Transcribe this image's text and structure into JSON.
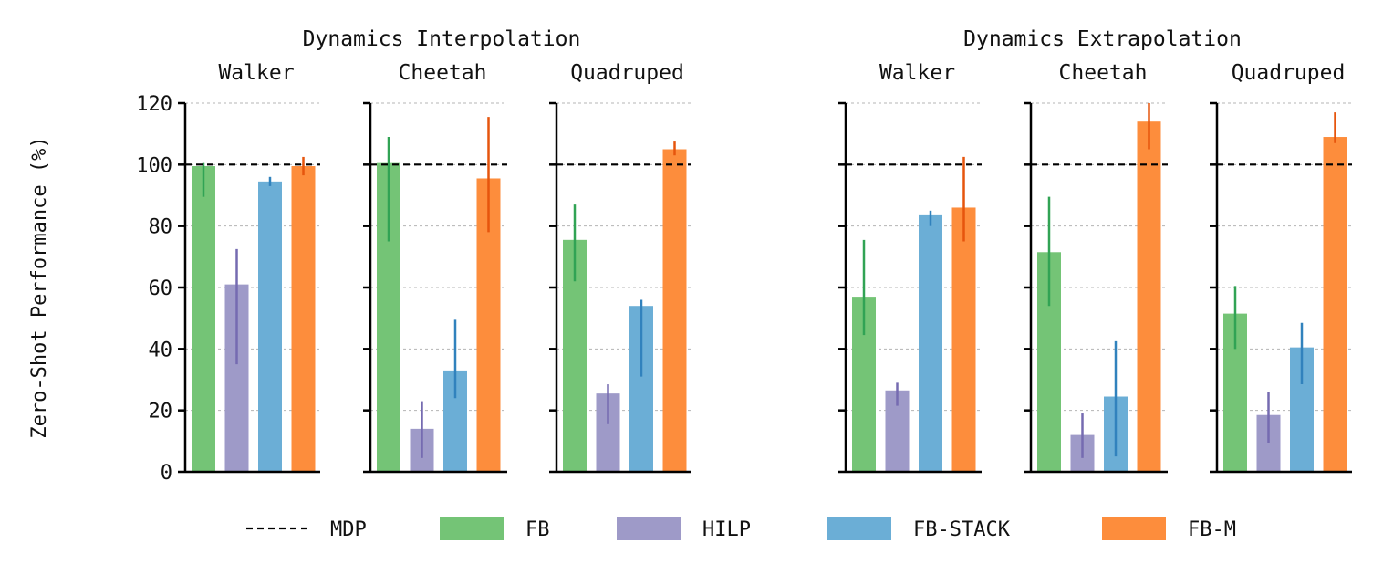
{
  "chart_data": {
    "type": "bar",
    "ylabel": "Zero-Shot Performance (%)",
    "ylim": [
      0,
      120
    ],
    "yticks": [
      0,
      20,
      40,
      60,
      80,
      100,
      120
    ],
    "grid": true,
    "reference_line": {
      "name": "MDP",
      "value": 100
    },
    "series_names": [
      "FB",
      "HILP",
      "FB-STACK",
      "FB-M"
    ],
    "colors": {
      "FB": "#74c476",
      "HILP": "#9e9ac8",
      "FB-STACK": "#6baed6",
      "FB-M": "#fd8d3c"
    },
    "error_colors": {
      "FB": "#31a354",
      "HILP": "#756bb1",
      "FB-STACK": "#3182bd",
      "FB-M": "#e6550d"
    },
    "groups": [
      {
        "title": "Dynamics Interpolation",
        "panels": [
          {
            "title": "Walker",
            "values": {
              "FB": 99.5,
              "HILP": 61,
              "FB-STACK": 94.5,
              "FB-M": 99.5
            },
            "errors": {
              "FB": [
                89.5,
                100.5
              ],
              "HILP": [
                35,
                72.5
              ],
              "FB-STACK": [
                93,
                96
              ],
              "FB-M": [
                96.5,
                102.5
              ]
            }
          },
          {
            "title": "Cheetah",
            "values": {
              "FB": 100.5,
              "HILP": 14,
              "FB-STACK": 33,
              "FB-M": 95.5
            },
            "errors": {
              "FB": [
                75,
                109
              ],
              "HILP": [
                4.5,
                23
              ],
              "FB-STACK": [
                24,
                49.5
              ],
              "FB-M": [
                78,
                115.5
              ]
            }
          },
          {
            "title": "Quadruped",
            "values": {
              "FB": 75.5,
              "HILP": 25.5,
              "FB-STACK": 54,
              "FB-M": 105
            },
            "errors": {
              "FB": [
                62,
                87
              ],
              "HILP": [
                15.5,
                28.5
              ],
              "FB-STACK": [
                31,
                56
              ],
              "FB-M": [
                103,
                107.5
              ]
            }
          }
        ]
      },
      {
        "title": "Dynamics Extrapolation",
        "panels": [
          {
            "title": "Walker",
            "values": {
              "FB": 57,
              "HILP": 26.5,
              "FB-STACK": 83.5,
              "FB-M": 86
            },
            "errors": {
              "FB": [
                44.5,
                75.5
              ],
              "HILP": [
                21.5,
                29
              ],
              "FB-STACK": [
                80,
                85
              ],
              "FB-M": [
                75,
                102.5
              ]
            }
          },
          {
            "title": "Cheetah",
            "values": {
              "FB": 71.5,
              "HILP": 12,
              "FB-STACK": 24.5,
              "FB-M": 114
            },
            "errors": {
              "FB": [
                54,
                89.5
              ],
              "HILP": [
                4.5,
                19
              ],
              "FB-STACK": [
                5,
                42.5
              ],
              "FB-M": [
                105,
                120
              ]
            }
          },
          {
            "title": "Quadruped",
            "values": {
              "FB": 51.5,
              "HILP": 18.5,
              "FB-STACK": 40.5,
              "FB-M": 109
            },
            "errors": {
              "FB": [
                40,
                60.5
              ],
              "HILP": [
                9.5,
                26
              ],
              "FB-STACK": [
                28.5,
                48.5
              ],
              "FB-M": [
                107,
                117
              ]
            }
          }
        ]
      }
    ],
    "legend": [
      "MDP",
      "FB",
      "HILP",
      "FB-STACK",
      "FB-M"
    ],
    "legend_position": "bottom"
  }
}
